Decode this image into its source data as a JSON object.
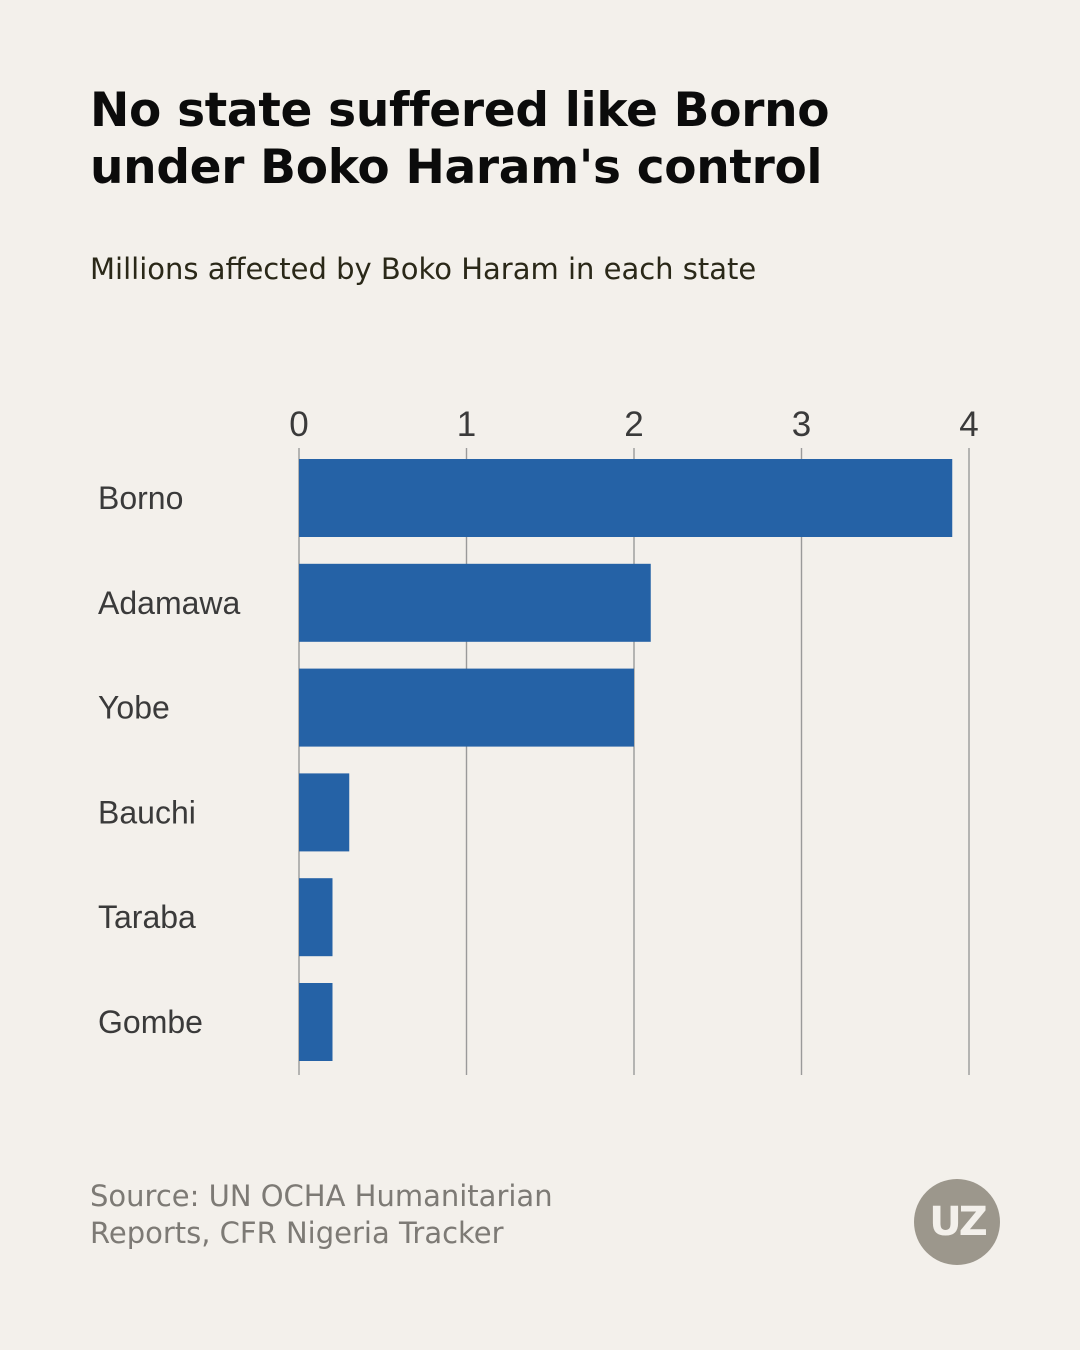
{
  "header": {
    "title_line1": "No state suffered like Borno",
    "title_line2": "under Boko Haram's control",
    "subtitle": "Millions affected by Boko Haram in each state"
  },
  "footer": {
    "source": "Source: UN OCHA Humanitarian Reports, CFR Nigeria Tracker",
    "logo_text": "UZ"
  },
  "colors": {
    "background": "#f3f0eb",
    "bar": "#2562a6",
    "gridline": "#9a9a9a",
    "logo": "#9c978c"
  },
  "chart_data": {
    "type": "bar",
    "orientation": "horizontal",
    "title": "No state suffered like Borno under Boko Haram's control",
    "subtitle": "Millions affected by Boko Haram in each state",
    "categories": [
      "Borno",
      "Adamawa",
      "Yobe",
      "Bauchi",
      "Taraba",
      "Gombe"
    ],
    "values": [
      3.9,
      2.1,
      2.0,
      0.3,
      0.2,
      0.2
    ],
    "xlim": [
      0,
      4
    ],
    "xticks": [
      0,
      1,
      2,
      3,
      4
    ],
    "xlabel": "",
    "ylabel": "",
    "grid": true,
    "axis_position": "top"
  }
}
